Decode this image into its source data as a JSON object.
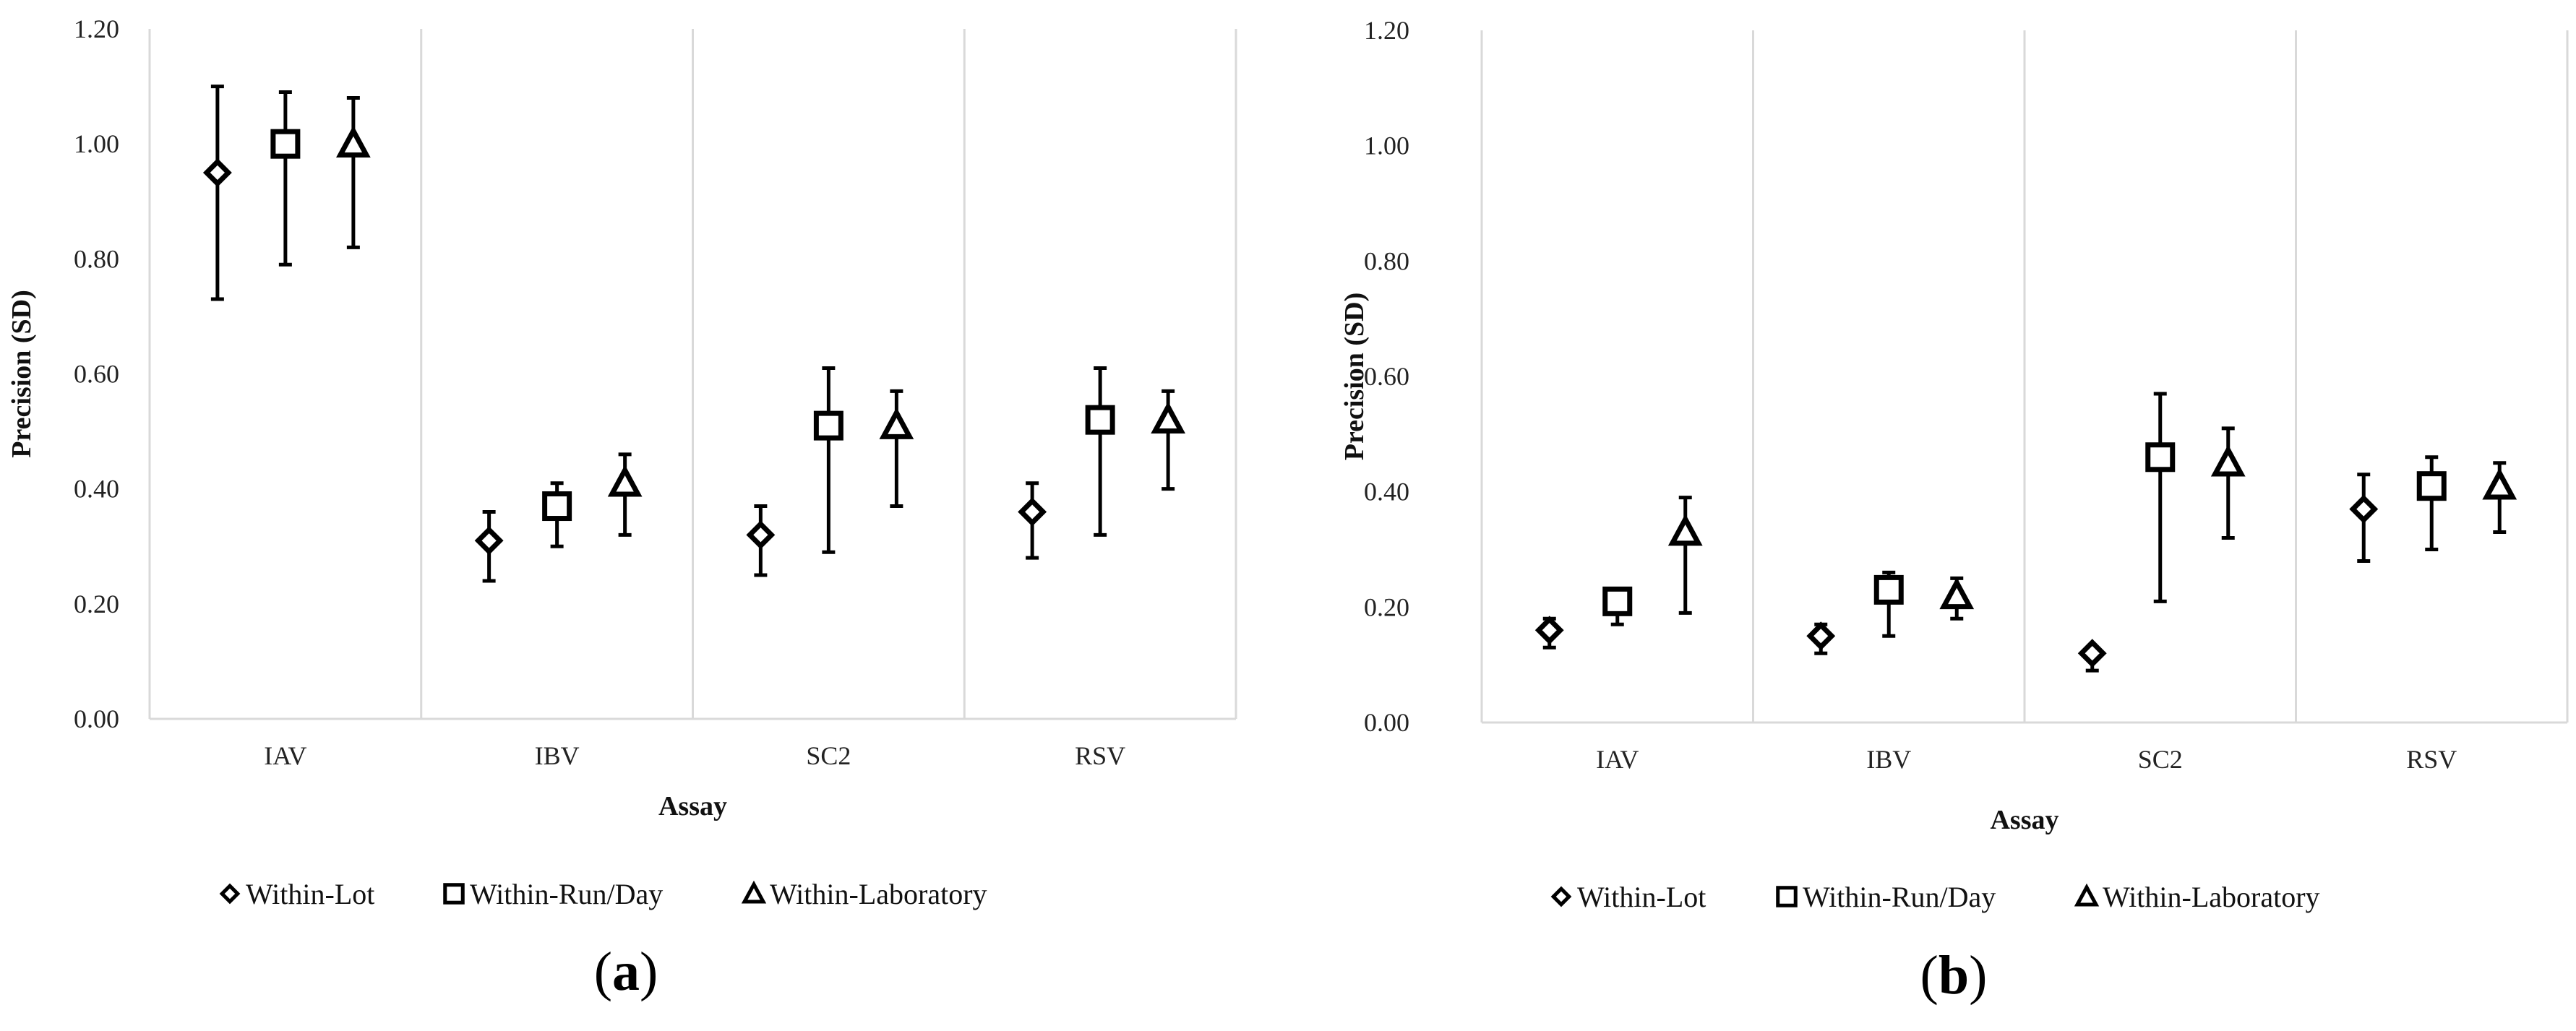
{
  "colors": {
    "marker": "#000000",
    "axis": "#d9d9d9",
    "background": "#ffffff"
  },
  "chart_data": [
    {
      "type": "scatter",
      "panel_label": {
        "open": "(",
        "letter": "a",
        "close": ")"
      },
      "title": "",
      "xlabel": "Assay",
      "ylabel": "Precision (SD)",
      "ylim": [
        0,
        1.2
      ],
      "yticks": [
        "0.00",
        "0.20",
        "0.40",
        "0.60",
        "0.80",
        "1.00",
        "1.20"
      ],
      "categories": [
        "IAV",
        "IBV",
        "SC2",
        "RSV"
      ],
      "grid": false,
      "legend_position": "bottom",
      "series": [
        {
          "name": "Within-Lot",
          "marker": "diamond",
          "values": [
            0.95,
            0.31,
            0.32,
            0.36
          ],
          "lower": [
            0.73,
            0.24,
            0.25,
            0.28
          ],
          "upper": [
            1.1,
            0.36,
            0.37,
            0.41
          ]
        },
        {
          "name": "Within-Run/Day",
          "marker": "square",
          "values": [
            1.0,
            0.37,
            0.51,
            0.52
          ],
          "lower": [
            0.79,
            0.3,
            0.29,
            0.32
          ],
          "upper": [
            1.09,
            0.41,
            0.61,
            0.61
          ]
        },
        {
          "name": "Within-Laboratory",
          "marker": "triangle",
          "values": [
            1.0,
            0.41,
            0.51,
            0.52
          ],
          "lower": [
            0.82,
            0.32,
            0.37,
            0.4
          ],
          "upper": [
            1.08,
            0.46,
            0.57,
            0.57
          ]
        }
      ]
    },
    {
      "type": "scatter",
      "panel_label": {
        "open": "(",
        "letter": "b",
        "close": ")"
      },
      "title": "",
      "xlabel": "Assay",
      "ylabel": "Precision (SD)",
      "ylim": [
        0,
        1.2
      ],
      "yticks": [
        "0.00",
        "0.20",
        "0.40",
        "0.60",
        "0.80",
        "1.00",
        "1.20"
      ],
      "categories": [
        "IAV",
        "IBV",
        "SC2",
        "RSV"
      ],
      "grid": false,
      "legend_position": "bottom",
      "series": [
        {
          "name": "Within-Lot",
          "marker": "diamond",
          "values": [
            0.16,
            0.15,
            0.12,
            0.37
          ],
          "lower": [
            0.13,
            0.12,
            0.09,
            0.28
          ],
          "upper": [
            0.18,
            0.17,
            0.13,
            0.43
          ]
        },
        {
          "name": "Within-Run/Day",
          "marker": "square",
          "values": [
            0.21,
            0.23,
            0.46,
            0.41
          ],
          "lower": [
            0.17,
            0.15,
            0.21,
            0.3
          ],
          "upper": [
            0.22,
            0.26,
            0.57,
            0.46
          ]
        },
        {
          "name": "Within-Laboratory",
          "marker": "triangle",
          "values": [
            0.33,
            0.22,
            0.45,
            0.41
          ],
          "lower": [
            0.19,
            0.18,
            0.32,
            0.33
          ],
          "upper": [
            0.39,
            0.25,
            0.51,
            0.45
          ]
        }
      ]
    }
  ]
}
